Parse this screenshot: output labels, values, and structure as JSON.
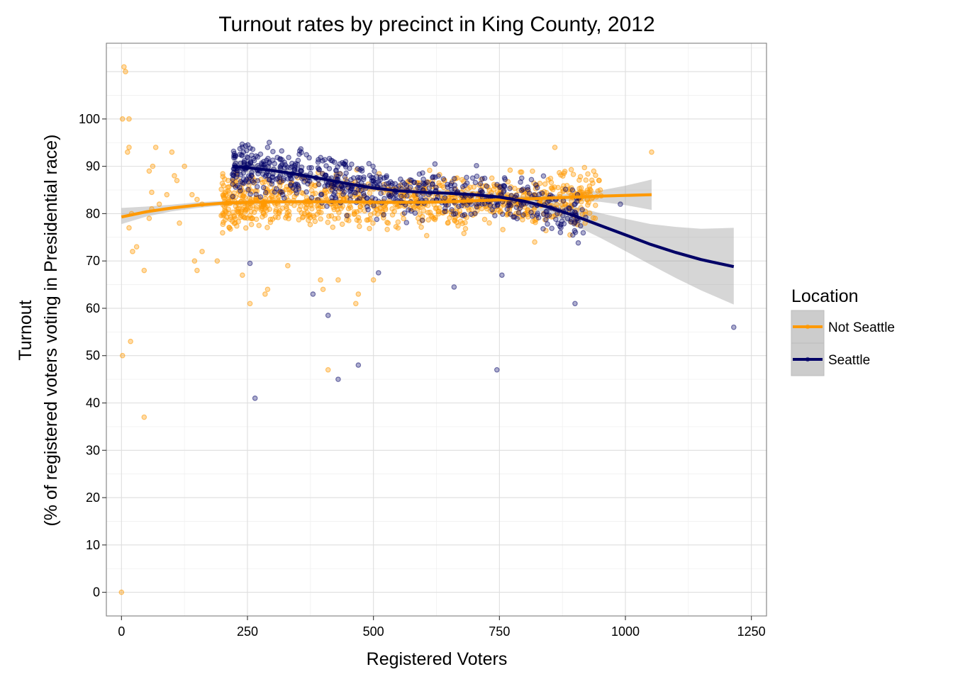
{
  "chart_data": {
    "type": "scatter",
    "title": "Turnout rates by precinct in King County, 2012",
    "xlabel": "Registered Voters",
    "ylabel_line1": "Turnout",
    "ylabel_line2": "(% of registered voters voting in Presidential race)",
    "xlim": [
      -30,
      1280
    ],
    "ylim": [
      -5,
      116
    ],
    "x_ticks": [
      0,
      250,
      500,
      750,
      1000,
      1250
    ],
    "y_ticks": [
      0,
      10,
      20,
      30,
      40,
      50,
      60,
      70,
      80,
      90,
      100
    ],
    "grid": true,
    "legend": {
      "title": "Location",
      "position": "right",
      "entries": [
        "Not Seattle",
        "Seattle"
      ]
    },
    "colors": {
      "not_seattle": "#ff9900",
      "seattle": "#000066",
      "ribbon": "#999999"
    },
    "series": [
      {
        "name": "Not Seattle",
        "outliers": [
          [
            5,
            111
          ],
          [
            8,
            110
          ],
          [
            15,
            100
          ],
          [
            2,
            100
          ],
          [
            12,
            93
          ],
          [
            15,
            94
          ],
          [
            68,
            94
          ],
          [
            100,
            93
          ],
          [
            55,
            89
          ],
          [
            62,
            90
          ],
          [
            105,
            88
          ],
          [
            125,
            90
          ],
          [
            110,
            87
          ],
          [
            90,
            84
          ],
          [
            60,
            84.5
          ],
          [
            75,
            82
          ],
          [
            140,
            84
          ],
          [
            150,
            83
          ],
          [
            160,
            82
          ],
          [
            60,
            81
          ],
          [
            20,
            80
          ],
          [
            55,
            79
          ],
          [
            115,
            78
          ],
          [
            15,
            77
          ],
          [
            30,
            73
          ],
          [
            22,
            72
          ],
          [
            160,
            72
          ],
          [
            145,
            70
          ],
          [
            150,
            68
          ],
          [
            190,
            70
          ],
          [
            45,
            68
          ],
          [
            18,
            53
          ],
          [
            2,
            50
          ],
          [
            45,
            37
          ],
          [
            0,
            0
          ],
          [
            240,
            67
          ],
          [
            255,
            61
          ],
          [
            285,
            63
          ],
          [
            290,
            64
          ],
          [
            330,
            69
          ],
          [
            395,
            66
          ],
          [
            400,
            64
          ],
          [
            410,
            47
          ],
          [
            465,
            61
          ],
          [
            470,
            63
          ],
          [
            430,
            66
          ],
          [
            500,
            66
          ],
          [
            1052,
            93
          ],
          [
            860,
            94
          ],
          [
            948,
            87
          ],
          [
            940,
            79
          ],
          [
            920,
            78
          ],
          [
            880,
            82
          ],
          [
            890,
            75.5
          ],
          [
            900,
            78
          ],
          [
            870,
            80
          ],
          [
            930,
            84
          ],
          [
            950,
            85
          ],
          [
            820,
            74
          ]
        ],
        "cluster": {
          "x_range": [
            200,
            950
          ],
          "y_center": 82,
          "y_spread": 5.2,
          "count": 900
        },
        "smooth": [
          [
            0,
            79.3
          ],
          [
            50,
            80.4
          ],
          [
            100,
            81.2
          ],
          [
            150,
            81.8
          ],
          [
            200,
            82.2
          ],
          [
            250,
            82.4
          ],
          [
            300,
            82.5
          ],
          [
            350,
            82.5
          ],
          [
            400,
            82.5
          ],
          [
            450,
            82.5
          ],
          [
            500,
            82.4
          ],
          [
            550,
            82.4
          ],
          [
            600,
            82.4
          ],
          [
            650,
            82.5
          ],
          [
            700,
            82.7
          ],
          [
            750,
            82.9
          ],
          [
            800,
            83.1
          ],
          [
            850,
            83.3
          ],
          [
            900,
            83.5
          ],
          [
            950,
            83.7
          ],
          [
            1000,
            83.85
          ],
          [
            1052,
            84
          ]
        ],
        "band": [
          [
            0,
            77.8,
            81.2
          ],
          [
            50,
            79.4,
            81.5
          ],
          [
            100,
            80.5,
            81.9
          ],
          [
            150,
            81.2,
            82.4
          ],
          [
            200,
            81.7,
            82.7
          ],
          [
            300,
            82.1,
            82.9
          ],
          [
            400,
            82.1,
            82.9
          ],
          [
            500,
            82.0,
            82.8
          ],
          [
            600,
            82.0,
            82.8
          ],
          [
            700,
            82.3,
            83.1
          ],
          [
            800,
            82.6,
            83.6
          ],
          [
            900,
            82.7,
            84.3
          ],
          [
            950,
            82.5,
            84.9
          ],
          [
            1000,
            81.8,
            85.9
          ],
          [
            1052,
            80.8,
            87.2
          ]
        ]
      },
      {
        "name": "Seattle",
        "outliers": [
          [
            265,
            41
          ],
          [
            380,
            63
          ],
          [
            410,
            58.5
          ],
          [
            430,
            45
          ],
          [
            470,
            48
          ],
          [
            660,
            64.5
          ],
          [
            745,
            47
          ],
          [
            755,
            67
          ],
          [
            900,
            61
          ],
          [
            1215,
            56
          ],
          [
            990,
            82
          ],
          [
            905,
            84
          ],
          [
            895,
            85
          ],
          [
            255,
            69.5
          ],
          [
            510,
            67.5
          ],
          [
            370,
            87
          ],
          [
            290,
            94
          ]
        ],
        "cluster": {
          "x_range": [
            220,
            920
          ],
          "y_center": 85,
          "y_spread": 4.8,
          "count": 650
        },
        "smooth": [
          [
            220,
            90
          ],
          [
            250,
            89.7
          ],
          [
            300,
            89.1
          ],
          [
            350,
            88.3
          ],
          [
            400,
            87.3
          ],
          [
            450,
            86.3
          ],
          [
            500,
            85.4
          ],
          [
            550,
            84.8
          ],
          [
            600,
            84.5
          ],
          [
            650,
            84.3
          ],
          [
            700,
            84.0
          ],
          [
            750,
            83.5
          ],
          [
            800,
            82.6
          ],
          [
            850,
            81.3
          ],
          [
            900,
            79.5
          ],
          [
            950,
            77.5
          ],
          [
            1000,
            75.5
          ],
          [
            1050,
            73.5
          ],
          [
            1100,
            71.8
          ],
          [
            1150,
            70.3
          ],
          [
            1215,
            68.8
          ]
        ],
        "band": [
          [
            220,
            88.6,
            91.4
          ],
          [
            250,
            88.6,
            90.8
          ],
          [
            300,
            88.3,
            89.9
          ],
          [
            350,
            87.6,
            89.0
          ],
          [
            400,
            86.6,
            88.0
          ],
          [
            450,
            85.6,
            87.0
          ],
          [
            500,
            84.8,
            86.0
          ],
          [
            550,
            84.2,
            85.4
          ],
          [
            600,
            83.9,
            85.1
          ],
          [
            650,
            83.6,
            85.0
          ],
          [
            700,
            83.2,
            84.8
          ],
          [
            750,
            82.6,
            84.4
          ],
          [
            800,
            81.5,
            83.7
          ],
          [
            850,
            79.8,
            82.8
          ],
          [
            900,
            77.5,
            81.5
          ],
          [
            950,
            74.9,
            80.1
          ],
          [
            1000,
            72.1,
            78.9
          ],
          [
            1050,
            69.2,
            77.8
          ],
          [
            1100,
            66.4,
            77.2
          ],
          [
            1150,
            63.8,
            76.8
          ],
          [
            1215,
            60.8,
            77.0
          ]
        ]
      }
    ]
  }
}
